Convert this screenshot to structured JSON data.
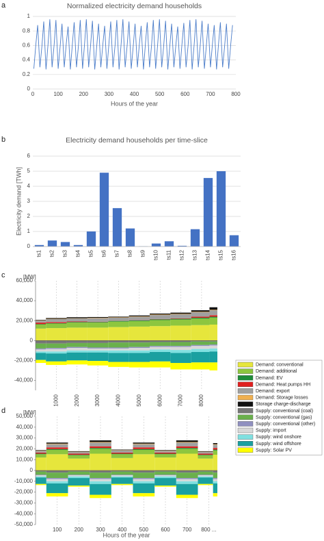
{
  "chart_data": [
    {
      "type": "line",
      "label": "a",
      "title": "Normalized electricity demand households",
      "xlabel": "Hours of the year",
      "color": "#4a7cc9",
      "grid": true,
      "xlim": [
        0,
        800
      ],
      "xticks": [
        0,
        100,
        200,
        300,
        400,
        500,
        600,
        700,
        800
      ],
      "ylim": [
        0,
        1
      ],
      "yticks": [
        0,
        0.2,
        0.4,
        0.6,
        0.8,
        1
      ],
      "x": [
        4,
        12,
        19,
        28,
        36,
        43,
        52,
        60,
        67,
        76,
        84,
        91,
        100,
        108,
        115,
        124,
        132,
        139,
        148,
        156,
        163,
        172,
        180,
        187,
        196,
        204,
        211,
        220,
        228,
        235,
        244,
        252,
        259,
        268,
        276,
        283,
        292,
        300,
        307,
        316,
        324,
        331,
        340,
        348,
        355,
        364,
        372,
        379,
        388,
        396,
        403,
        412,
        420,
        427,
        436,
        444,
        451,
        460,
        468,
        475,
        484,
        492,
        499,
        508,
        516,
        523,
        532,
        540,
        547,
        556,
        564,
        571,
        580,
        588,
        595,
        604,
        612,
        619,
        628,
        636,
        643,
        652,
        660,
        667,
        676,
        684,
        691,
        700,
        708,
        715,
        724,
        732,
        739,
        748,
        756,
        763,
        772,
        780,
        787
      ],
      "values": [
        0.28,
        0.62,
        0.88,
        0.3,
        0.6,
        0.93,
        0.27,
        0.62,
        0.96,
        0.3,
        0.61,
        0.95,
        0.28,
        0.6,
        0.9,
        0.3,
        0.63,
        0.86,
        0.27,
        0.62,
        0.92,
        0.3,
        0.6,
        0.95,
        0.28,
        0.62,
        0.96,
        0.3,
        0.61,
        0.94,
        0.27,
        0.6,
        0.9,
        0.3,
        0.62,
        0.87,
        0.28,
        0.63,
        0.93,
        0.3,
        0.6,
        0.95,
        0.27,
        0.62,
        0.96,
        0.3,
        0.61,
        0.93,
        0.28,
        0.6,
        0.9,
        0.3,
        0.62,
        0.87,
        0.27,
        0.63,
        0.92,
        0.3,
        0.6,
        0.95,
        0.28,
        0.62,
        0.96,
        0.3,
        0.61,
        0.94,
        0.27,
        0.6,
        0.9,
        0.3,
        0.62,
        0.86,
        0.28,
        0.63,
        0.91,
        0.3,
        0.6,
        0.95,
        0.27,
        0.62,
        0.96,
        0.3,
        0.61,
        0.94,
        0.28,
        0.6,
        0.9,
        0.3,
        0.62,
        0.88,
        0.27,
        0.63,
        0.92,
        0.3,
        0.6,
        0.9,
        0.28,
        0.62,
        0.88
      ]
    },
    {
      "type": "bar",
      "label": "b",
      "title": "Electricity demand households per time-slice",
      "ylabel": "Electricity demand [TWh]",
      "color": "#4472c4",
      "grid": true,
      "xtick_rotation": -90,
      "categories": [
        "ts1",
        "ts2",
        "ts3",
        "ts4",
        "ts5",
        "ts6",
        "ts7",
        "ts8",
        "ts9",
        "ts10",
        "ts11",
        "ts12",
        "ts13",
        "ts14",
        "ts15",
        "ts16"
      ],
      "values": [
        0.1,
        0.4,
        0.3,
        0.1,
        1.0,
        4.9,
        2.55,
        1.2,
        0.02,
        0.2,
        0.35,
        0.05,
        1.15,
        4.55,
        5.0,
        0.75
      ],
      "ylim": [
        0,
        6
      ],
      "yticks": [
        0,
        1,
        2,
        3,
        4,
        5,
        6
      ]
    },
    {
      "type": "area",
      "label": "c",
      "y_unit": "[MW]",
      "legend": "right",
      "xtick_rotation": -90,
      "xlim": [
        0,
        8760
      ],
      "xticks": [
        1000,
        2000,
        3000,
        4000,
        5000,
        6000,
        7000,
        8000
      ],
      "ylim": [
        -50000,
        60000
      ],
      "yticks": [
        {
          "value": -40000,
          "label": "-40,000"
        },
        {
          "value": -20000,
          "label": "-20,000"
        },
        0,
        {
          "value": 20000,
          "label": "20,000"
        },
        {
          "value": 40000,
          "label": "40,000"
        },
        {
          "value": 60000,
          "label": "60,000"
        }
      ],
      "x": [
        0,
        1000,
        2000,
        3000,
        4000,
        5000,
        6000,
        7000,
        8000,
        8760
      ],
      "series": [
        {
          "name": "Demand: conventional",
          "color": "#e6e63c",
          "values": [
            12000,
            12500,
            13000,
            13000,
            13500,
            14000,
            14500,
            15000,
            15500,
            16000
          ]
        },
        {
          "name": "Demand: additional",
          "color": "#8dc63f",
          "values": [
            4000,
            4500,
            5000,
            5000,
            5500,
            5500,
            6000,
            6000,
            6500,
            7000
          ]
        },
        {
          "name": "Demand: EV",
          "color": "#1e8c3a",
          "values": [
            500,
            500,
            600,
            600,
            700,
            700,
            800,
            800,
            900,
            900
          ]
        },
        {
          "name": "Demand: Heat pumps HH",
          "color": "#e02020",
          "values": [
            1500,
            1000,
            500,
            300,
            200,
            200,
            300,
            500,
            1000,
            1500
          ]
        },
        {
          "name": "Demand: export",
          "color": "#a0a0a0",
          "values": [
            2000,
            3000,
            3000,
            3500,
            3000,
            3500,
            4000,
            4000,
            4500,
            5000
          ]
        },
        {
          "name": "Demand: Storage losses",
          "color": "#f0b050",
          "values": [
            300,
            300,
            300,
            400,
            400,
            400,
            500,
            500,
            500,
            500
          ]
        },
        {
          "name": "Storage charge-discharge",
          "color": "#111111",
          "values": [
            500,
            800,
            1000,
            800,
            700,
            900,
            1000,
            1200,
            1500,
            2500
          ]
        },
        {
          "name": "Supply: conventional (coal)",
          "color": "#777777",
          "values": [
            -3000,
            -3000,
            -2500,
            -2500,
            -2000,
            -2000,
            -1500,
            -1500,
            -1000,
            -1000
          ]
        },
        {
          "name": "Supply: conventional (gas)",
          "color": "#6ab04c",
          "values": [
            -5000,
            -4500,
            -4000,
            -4500,
            -5000,
            -4500,
            -4000,
            -4000,
            -3500,
            -3000
          ]
        },
        {
          "name": "Supply: conventional (other)",
          "color": "#9090c0",
          "values": [
            -1000,
            -1000,
            -1000,
            -1000,
            -1000,
            -1000,
            -1000,
            -1000,
            -1000,
            -1000
          ]
        },
        {
          "name": "Supply: import",
          "color": "#d8d8d8",
          "values": [
            -2000,
            -2500,
            -2500,
            -2000,
            -2000,
            -2500,
            -2500,
            -3000,
            -3000,
            -3000
          ]
        },
        {
          "name": "Supply: wind onshore",
          "color": "#80e0e0",
          "values": [
            -1500,
            -2000,
            -2000,
            -2000,
            -2500,
            -2500,
            -2500,
            -3000,
            -3000,
            -3000
          ]
        },
        {
          "name": "Supply: wind offshore",
          "color": "#1aa0a0",
          "values": [
            -7000,
            -8000,
            -8000,
            -8500,
            -9000,
            -9000,
            -9500,
            -10000,
            -10500,
            -11000
          ]
        },
        {
          "name": "Supply: Solar PV",
          "color": "#ffff00",
          "values": [
            -3000,
            -3500,
            -4000,
            -4500,
            -5000,
            -5500,
            -6000,
            -6500,
            -7000,
            -8000
          ]
        }
      ]
    },
    {
      "type": "area",
      "label": "d",
      "y_unit": "[MW]",
      "xlabel": "Hours of the year",
      "xlim": [
        0,
        840
      ],
      "xticks": [
        100,
        200,
        300,
        400,
        500,
        600,
        700,
        {
          "value": 800,
          "label": "800 ..."
        }
      ],
      "ylim": [
        -50000,
        50000
      ],
      "yticks": [
        {
          "value": -50000,
          "label": "-50,000"
        },
        {
          "value": -40000,
          "label": "-40,000"
        },
        {
          "value": -30000,
          "label": "-30,000"
        },
        {
          "value": -20000,
          "label": "-20,000"
        },
        {
          "value": -10000,
          "label": "-10,000"
        },
        0,
        {
          "value": 10000,
          "label": "10,000"
        },
        {
          "value": 20000,
          "label": "20,000"
        },
        {
          "value": 30000,
          "label": "30,000"
        },
        {
          "value": 40000,
          "label": "40,000"
        },
        {
          "value": 50000,
          "label": "50,000"
        }
      ],
      "x": [
        0,
        100,
        200,
        300,
        400,
        500,
        600,
        700,
        800,
        840
      ],
      "series": [
        {
          "values": [
            12000,
            15000,
            11000,
            15500,
            11500,
            15000,
            12000,
            15500,
            11000,
            14500
          ]
        },
        {
          "values": [
            3000,
            4000,
            3000,
            4500,
            3500,
            4000,
            3000,
            4500,
            3000,
            4000
          ]
        },
        {
          "values": [
            500,
            800,
            500,
            800,
            500,
            800,
            500,
            800,
            500,
            800
          ]
        },
        {
          "values": [
            1000,
            1500,
            1000,
            1500,
            1000,
            1500,
            1000,
            1500,
            1000,
            1500
          ]
        },
        {
          "values": [
            1500,
            3000,
            1500,
            3500,
            2000,
            3000,
            1500,
            3500,
            1500,
            3000
          ]
        },
        {
          "values": [
            300,
            500,
            300,
            500,
            300,
            500,
            300,
            500,
            300,
            500
          ]
        },
        {
          "values": [
            500,
            1000,
            500,
            1500,
            500,
            1000,
            500,
            1500,
            500,
            1000
          ]
        },
        {
          "values": [
            -1000,
            -2000,
            -1000,
            -2000,
            -1000,
            -2000,
            -1000,
            -2000,
            -1000,
            -2000
          ]
        },
        {
          "values": [
            -3000,
            -5000,
            -3000,
            -5000,
            -3000,
            -5000,
            -3000,
            -5000,
            -3000,
            -5000
          ]
        },
        {
          "values": [
            -500,
            -1000,
            -500,
            -1000,
            -500,
            -1000,
            -500,
            -1000,
            -500,
            -1000
          ]
        },
        {
          "values": [
            -1000,
            -2000,
            -1000,
            -2000,
            -1000,
            -2000,
            -1000,
            -2000,
            -1000,
            -2000
          ]
        },
        {
          "values": [
            -1000,
            -2000,
            -1500,
            -2500,
            -1000,
            -2000,
            -1500,
            -2500,
            -1000,
            -2000
          ]
        },
        {
          "values": [
            -6000,
            -9000,
            -7000,
            -10000,
            -6000,
            -9000,
            -7000,
            -10000,
            -6000,
            -9000
          ]
        },
        {
          "values": [
            -1000,
            -3000,
            -1000,
            -3000,
            -1000,
            -3000,
            -1000,
            -3000,
            -1000,
            -3000
          ]
        }
      ]
    }
  ]
}
